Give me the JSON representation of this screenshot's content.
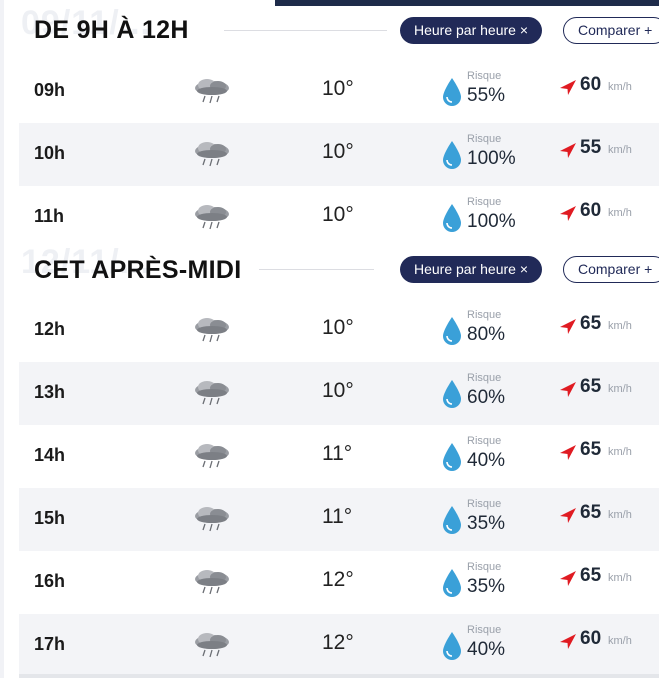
{
  "sections": [
    {
      "ghost": "09/11/...",
      "title": "DE 9H À 12H",
      "filter_pill": "Heure par heure ×",
      "compare_pill": "Comparer +",
      "rows": [
        {
          "hour": "09h",
          "temp": "10°",
          "risk_label": "Risque",
          "risk": "55%",
          "wind": "60",
          "unit": "km/h"
        },
        {
          "hour": "10h",
          "temp": "10°",
          "risk_label": "Risque",
          "risk": "100%",
          "wind": "55",
          "unit": "km/h"
        },
        {
          "hour": "11h",
          "temp": "10°",
          "risk_label": "Risque",
          "risk": "100%",
          "wind": "60",
          "unit": "km/h"
        }
      ]
    },
    {
      "ghost": "12/11/...",
      "title": "CET APRÈS-MIDI",
      "filter_pill": "Heure par heure ×",
      "compare_pill": "Comparer +",
      "rows": [
        {
          "hour": "12h",
          "temp": "10°",
          "risk_label": "Risque",
          "risk": "80%",
          "wind": "65",
          "unit": "km/h"
        },
        {
          "hour": "13h",
          "temp": "10°",
          "risk_label": "Risque",
          "risk": "60%",
          "wind": "65",
          "unit": "km/h"
        },
        {
          "hour": "14h",
          "temp": "11°",
          "risk_label": "Risque",
          "risk": "40%",
          "wind": "65",
          "unit": "km/h"
        },
        {
          "hour": "15h",
          "temp": "11°",
          "risk_label": "Risque",
          "risk": "35%",
          "wind": "65",
          "unit": "km/h"
        },
        {
          "hour": "16h",
          "temp": "12°",
          "risk_label": "Risque",
          "risk": "35%",
          "wind": "65",
          "unit": "km/h"
        },
        {
          "hour": "17h",
          "temp": "12°",
          "risk_label": "Risque",
          "risk": "40%",
          "wind": "60",
          "unit": "km/h"
        }
      ]
    }
  ],
  "icons": {
    "weather": "rain-cloud-icon",
    "drop": "rain-drop-icon",
    "wind": "wind-direction-arrow-icon"
  },
  "colors": {
    "navy": "#212a58",
    "drop": "#3aa0d8",
    "arrow": "#e01b22",
    "alt_row": "#f3f4f7"
  }
}
